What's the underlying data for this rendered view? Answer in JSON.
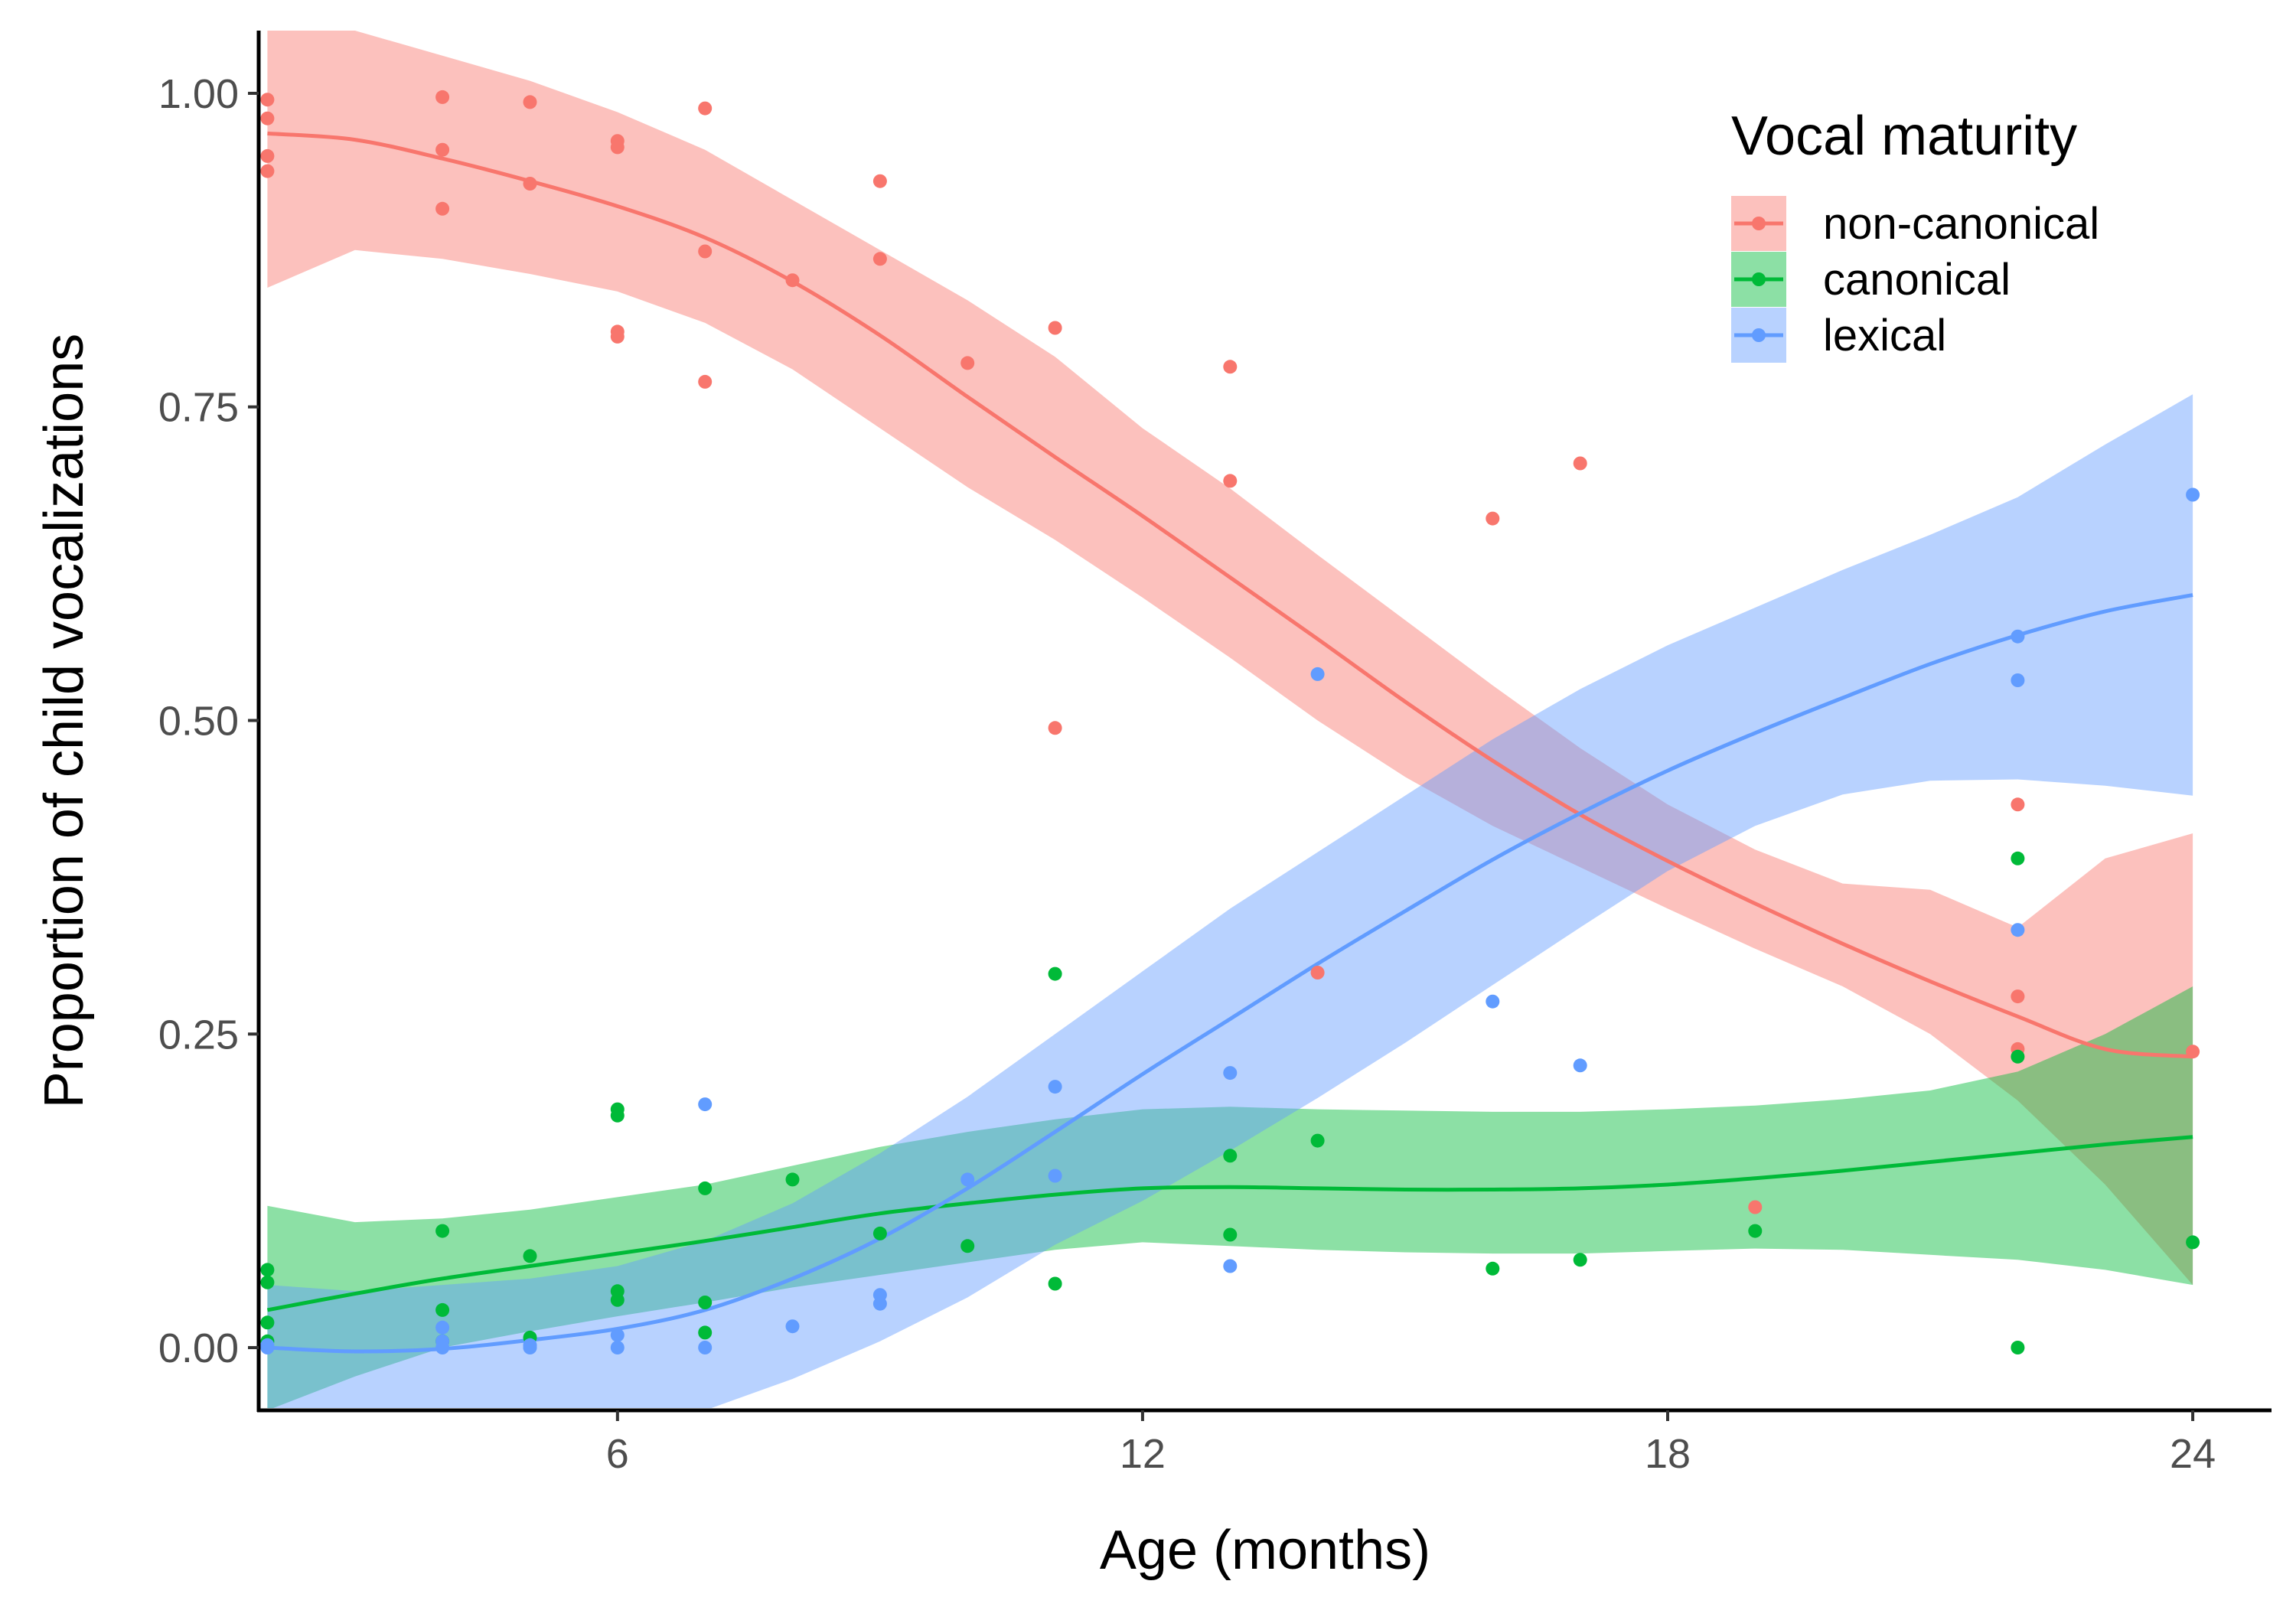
{
  "chart_data": {
    "type": "scatter",
    "title": "",
    "xlabel": "Age (months)",
    "ylabel": "Proportion of child vocalizations",
    "xlim": [
      1.9,
      24.9
    ],
    "ylim": [
      -0.05,
      1.05
    ],
    "xticks": [
      6,
      12,
      18,
      24
    ],
    "xtick_labels": [
      "6",
      "12",
      "18",
      "24"
    ],
    "yticks": [
      0,
      0.25,
      0.5,
      0.75,
      1
    ],
    "ytick_labels": [
      "0.00",
      "0.25",
      "0.50",
      "0.75",
      "1.00"
    ],
    "grid": false,
    "legend": {
      "title": "Vocal maturity",
      "position": "top-right"
    },
    "series": [
      {
        "name": "non-canonical",
        "color": "#F8766D",
        "points": [
          [
            2,
            0.995
          ],
          [
            2,
            0.98
          ],
          [
            2,
            0.95
          ],
          [
            2,
            0.938
          ],
          [
            4,
            0.997
          ],
          [
            4,
            0.955
          ],
          [
            4,
            0.908
          ],
          [
            5,
            0.993
          ],
          [
            5,
            0.928
          ],
          [
            6,
            0.962
          ],
          [
            6,
            0.957
          ],
          [
            6,
            0.81
          ],
          [
            6,
            0.806
          ],
          [
            7,
            0.988
          ],
          [
            7,
            0.874
          ],
          [
            7,
            0.77
          ],
          [
            8,
            0.851
          ],
          [
            9,
            0.93
          ],
          [
            9,
            0.868
          ],
          [
            10,
            0.785
          ],
          [
            11,
            0.813
          ],
          [
            11,
            0.494
          ],
          [
            13,
            0.782
          ],
          [
            13,
            0.691
          ],
          [
            14,
            0.299
          ],
          [
            16,
            0.661
          ],
          [
            17,
            0.705
          ],
          [
            19,
            0.112
          ],
          [
            22,
            0.433
          ],
          [
            22,
            0.28
          ],
          [
            22,
            0.238
          ],
          [
            24,
            0.236
          ]
        ],
        "smooth": [
          [
            2,
            0.968
          ],
          [
            3,
            0.963
          ],
          [
            4,
            0.948
          ],
          [
            5,
            0.93
          ],
          [
            6,
            0.91
          ],
          [
            7,
            0.885
          ],
          [
            8,
            0.85
          ],
          [
            9,
            0.807
          ],
          [
            10,
            0.758
          ],
          [
            11,
            0.71
          ],
          [
            12,
            0.663
          ],
          [
            13,
            0.614
          ],
          [
            14,
            0.565
          ],
          [
            15,
            0.515
          ],
          [
            16,
            0.468
          ],
          [
            17,
            0.425
          ],
          [
            18,
            0.388
          ],
          [
            19,
            0.354
          ],
          [
            20,
            0.322
          ],
          [
            21,
            0.292
          ],
          [
            22,
            0.264
          ],
          [
            23,
            0.238
          ],
          [
            24,
            0.232
          ]
        ],
        "band_low": [
          [
            2,
            0.845
          ],
          [
            3,
            0.875
          ],
          [
            4,
            0.868
          ],
          [
            5,
            0.856
          ],
          [
            6,
            0.842
          ],
          [
            7,
            0.817
          ],
          [
            8,
            0.78
          ],
          [
            9,
            0.733
          ],
          [
            10,
            0.686
          ],
          [
            11,
            0.644
          ],
          [
            12,
            0.598
          ],
          [
            13,
            0.55
          ],
          [
            14,
            0.5
          ],
          [
            15,
            0.455
          ],
          [
            16,
            0.416
          ],
          [
            17,
            0.383
          ],
          [
            18,
            0.35
          ],
          [
            19,
            0.318
          ],
          [
            20,
            0.288
          ],
          [
            21,
            0.25
          ],
          [
            22,
            0.197
          ],
          [
            23,
            0.13
          ],
          [
            24,
            0.05
          ]
        ],
        "band_high": [
          [
            2,
            1.05
          ],
          [
            3,
            1.05
          ],
          [
            4,
            1.03
          ],
          [
            5,
            1.01
          ],
          [
            6,
            0.985
          ],
          [
            7,
            0.955
          ],
          [
            8,
            0.915
          ],
          [
            9,
            0.875
          ],
          [
            10,
            0.835
          ],
          [
            11,
            0.79
          ],
          [
            12,
            0.733
          ],
          [
            13,
            0.685
          ],
          [
            14,
            0.632
          ],
          [
            15,
            0.58
          ],
          [
            16,
            0.528
          ],
          [
            17,
            0.478
          ],
          [
            18,
            0.433
          ],
          [
            19,
            0.397
          ],
          [
            20,
            0.37
          ],
          [
            21,
            0.365
          ],
          [
            22,
            0.335
          ],
          [
            23,
            0.39
          ],
          [
            24,
            0.41
          ]
        ]
      },
      {
        "name": "canonical",
        "color": "#00BA38",
        "points": [
          [
            2,
            0.062
          ],
          [
            2,
            0.052
          ],
          [
            2,
            0.02
          ],
          [
            2,
            0.005
          ],
          [
            4,
            0.093
          ],
          [
            4,
            0.03
          ],
          [
            4,
            0.005
          ],
          [
            5,
            0.073
          ],
          [
            5,
            0.008
          ],
          [
            6,
            0.19
          ],
          [
            6,
            0.185
          ],
          [
            6,
            0.045
          ],
          [
            6,
            0.038
          ],
          [
            7,
            0.127
          ],
          [
            7,
            0.036
          ],
          [
            7,
            0.012
          ],
          [
            8,
            0.134
          ],
          [
            9,
            0.091
          ],
          [
            10,
            0.081
          ],
          [
            11,
            0.298
          ],
          [
            11,
            0.051
          ],
          [
            13,
            0.153
          ],
          [
            13,
            0.09
          ],
          [
            14,
            0.165
          ],
          [
            16,
            0.063
          ],
          [
            17,
            0.07
          ],
          [
            19,
            0.093
          ],
          [
            22,
            0.39
          ],
          [
            22,
            0.232
          ],
          [
            22,
            0.0
          ],
          [
            24,
            0.084
          ]
        ],
        "smooth": [
          [
            2,
            0.03
          ],
          [
            3,
            0.043
          ],
          [
            4,
            0.055
          ],
          [
            5,
            0.065
          ],
          [
            6,
            0.075
          ],
          [
            7,
            0.085
          ],
          [
            8,
            0.096
          ],
          [
            9,
            0.107
          ],
          [
            10,
            0.115
          ],
          [
            11,
            0.122
          ],
          [
            12,
            0.127
          ],
          [
            13,
            0.128
          ],
          [
            14,
            0.127
          ],
          [
            15,
            0.126
          ],
          [
            16,
            0.126
          ],
          [
            17,
            0.127
          ],
          [
            18,
            0.13
          ],
          [
            19,
            0.135
          ],
          [
            20,
            0.141
          ],
          [
            21,
            0.148
          ],
          [
            22,
            0.155
          ],
          [
            23,
            0.162
          ],
          [
            24,
            0.168
          ]
        ],
        "band_low": [
          [
            2,
            -0.05
          ],
          [
            3,
            -0.023
          ],
          [
            4,
            0.0
          ],
          [
            5,
            0.013
          ],
          [
            6,
            0.025
          ],
          [
            7,
            0.036
          ],
          [
            8,
            0.048
          ],
          [
            9,
            0.058
          ],
          [
            10,
            0.068
          ],
          [
            11,
            0.078
          ],
          [
            12,
            0.084
          ],
          [
            13,
            0.081
          ],
          [
            14,
            0.078
          ],
          [
            15,
            0.076
          ],
          [
            16,
            0.075
          ],
          [
            17,
            0.075
          ],
          [
            18,
            0.077
          ],
          [
            19,
            0.079
          ],
          [
            20,
            0.078
          ],
          [
            21,
            0.074
          ],
          [
            22,
            0.07
          ],
          [
            23,
            0.062
          ],
          [
            24,
            0.05
          ]
        ],
        "band_high": [
          [
            2,
            0.113
          ],
          [
            3,
            0.1
          ],
          [
            4,
            0.103
          ],
          [
            5,
            0.11
          ],
          [
            6,
            0.12
          ],
          [
            7,
            0.13
          ],
          [
            8,
            0.145
          ],
          [
            9,
            0.16
          ],
          [
            10,
            0.172
          ],
          [
            11,
            0.182
          ],
          [
            12,
            0.19
          ],
          [
            13,
            0.192
          ],
          [
            14,
            0.19
          ],
          [
            15,
            0.189
          ],
          [
            16,
            0.188
          ],
          [
            17,
            0.188
          ],
          [
            18,
            0.19
          ],
          [
            19,
            0.193
          ],
          [
            20,
            0.198
          ],
          [
            21,
            0.205
          ],
          [
            22,
            0.22
          ],
          [
            23,
            0.25
          ],
          [
            24,
            0.288
          ]
        ]
      },
      {
        "name": "lexical",
        "color": "#619CFF",
        "points": [
          [
            2,
            0.002
          ],
          [
            2,
            0.0
          ],
          [
            4,
            0.016
          ],
          [
            4,
            0.005
          ],
          [
            4,
            0.0
          ],
          [
            5,
            0.002
          ],
          [
            5,
            0.0
          ],
          [
            6,
            0.01
          ],
          [
            6,
            0.0
          ],
          [
            7,
            0.194
          ],
          [
            7,
            0.0
          ],
          [
            8,
            0.017
          ],
          [
            9,
            0.042
          ],
          [
            9,
            0.035
          ],
          [
            10,
            0.134
          ],
          [
            11,
            0.208
          ],
          [
            11,
            0.137
          ],
          [
            13,
            0.219
          ],
          [
            13,
            0.065
          ],
          [
            14,
            0.537
          ],
          [
            16,
            0.276
          ],
          [
            17,
            0.225
          ],
          [
            22,
            0.567
          ],
          [
            22,
            0.532
          ],
          [
            22,
            0.333
          ],
          [
            24,
            0.68
          ]
        ],
        "smooth": [
          [
            2,
            0.0
          ],
          [
            3,
            -0.003
          ],
          [
            4,
            -0.001
          ],
          [
            5,
            0.006
          ],
          [
            6,
            0.015
          ],
          [
            7,
            0.03
          ],
          [
            8,
            0.055
          ],
          [
            9,
            0.087
          ],
          [
            10,
            0.127
          ],
          [
            11,
            0.172
          ],
          [
            12,
            0.218
          ],
          [
            13,
            0.262
          ],
          [
            14,
            0.306
          ],
          [
            15,
            0.348
          ],
          [
            16,
            0.389
          ],
          [
            17,
            0.426
          ],
          [
            18,
            0.46
          ],
          [
            19,
            0.49
          ],
          [
            20,
            0.518
          ],
          [
            21,
            0.545
          ],
          [
            22,
            0.568
          ],
          [
            23,
            0.587
          ],
          [
            24,
            0.6
          ]
        ],
        "band_low": [
          [
            2,
            -0.05
          ],
          [
            3,
            -0.05
          ],
          [
            4,
            -0.05
          ],
          [
            5,
            -0.05
          ],
          [
            6,
            -0.05
          ],
          [
            7,
            -0.05
          ],
          [
            8,
            -0.025
          ],
          [
            9,
            0.005
          ],
          [
            10,
            0.04
          ],
          [
            11,
            0.082
          ],
          [
            12,
            0.117
          ],
          [
            13,
            0.157
          ],
          [
            14,
            0.199
          ],
          [
            15,
            0.243
          ],
          [
            16,
            0.289
          ],
          [
            17,
            0.335
          ],
          [
            18,
            0.38
          ],
          [
            19,
            0.416
          ],
          [
            20,
            0.441
          ],
          [
            21,
            0.452
          ],
          [
            22,
            0.453
          ],
          [
            23,
            0.448
          ],
          [
            24,
            0.44
          ]
        ],
        "band_high": [
          [
            2,
            0.05
          ],
          [
            3,
            0.045
          ],
          [
            4,
            0.05
          ],
          [
            5,
            0.055
          ],
          [
            6,
            0.065
          ],
          [
            7,
            0.085
          ],
          [
            8,
            0.115
          ],
          [
            9,
            0.155
          ],
          [
            10,
            0.2
          ],
          [
            11,
            0.25
          ],
          [
            12,
            0.3
          ],
          [
            13,
            0.35
          ],
          [
            14,
            0.395
          ],
          [
            15,
            0.44
          ],
          [
            16,
            0.485
          ],
          [
            17,
            0.525
          ],
          [
            18,
            0.56
          ],
          [
            19,
            0.59
          ],
          [
            20,
            0.62
          ],
          [
            21,
            0.648
          ],
          [
            22,
            0.678
          ],
          [
            23,
            0.72
          ],
          [
            24,
            0.76
          ]
        ]
      }
    ]
  }
}
